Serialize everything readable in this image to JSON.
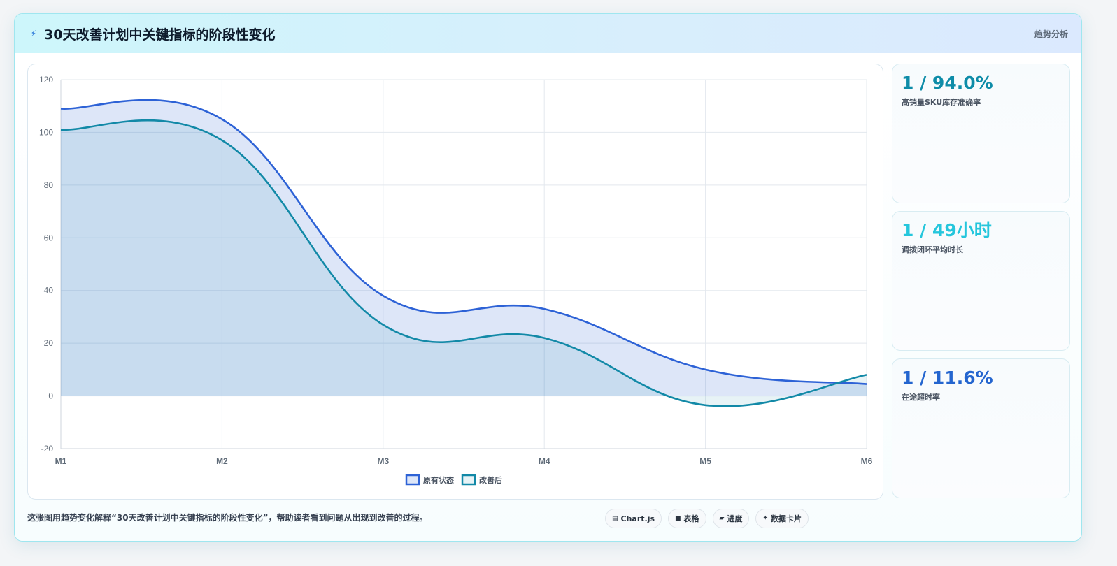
{
  "header": {
    "icon": "lightning-icon",
    "title": "30天改善计划中关键指标的阶段性变化",
    "tag": "趋势分析"
  },
  "kpis": [
    {
      "value": "1 / 94.0%",
      "label": "高销量SKU库存准确率",
      "color": "#0e8ca8"
    },
    {
      "value": "1 / 49小时",
      "label": "调拨闭环平均时长",
      "color": "#25c6dc"
    },
    {
      "value": "1 / 11.6%",
      "label": "在途超时率",
      "color": "#2465cf"
    }
  ],
  "footer": {
    "description": "这张图用趋势变化解释“30天改善计划中关键指标的阶段性变化”，帮助读者看到问题从出现到改善的过程。",
    "chips": [
      {
        "icon": "chart-icon",
        "label": "Chart.js"
      },
      {
        "icon": "table-icon",
        "label": "表格"
      },
      {
        "icon": "progress-icon",
        "label": "进度"
      },
      {
        "icon": "sparkle-icon",
        "label": "数据卡片"
      }
    ]
  },
  "chart_data": {
    "type": "area",
    "categories": [
      "M1",
      "M2",
      "M3",
      "M4",
      "M5",
      "M6"
    ],
    "series": [
      {
        "name": "原有状态",
        "values": [
          109,
          105,
          38,
          33,
          10,
          4.5
        ],
        "color": "#2d62d6"
      },
      {
        "name": "改善后",
        "values": [
          101,
          97,
          27,
          22,
          -3.5,
          8
        ],
        "color": "#1289a7"
      }
    ],
    "ylim": [
      -20,
      120
    ],
    "yticks": [
      -20,
      0,
      20,
      40,
      60,
      80,
      100,
      120
    ],
    "grid": true,
    "legend_position": "bottom",
    "title": "",
    "xlabel": "",
    "ylabel": ""
  }
}
